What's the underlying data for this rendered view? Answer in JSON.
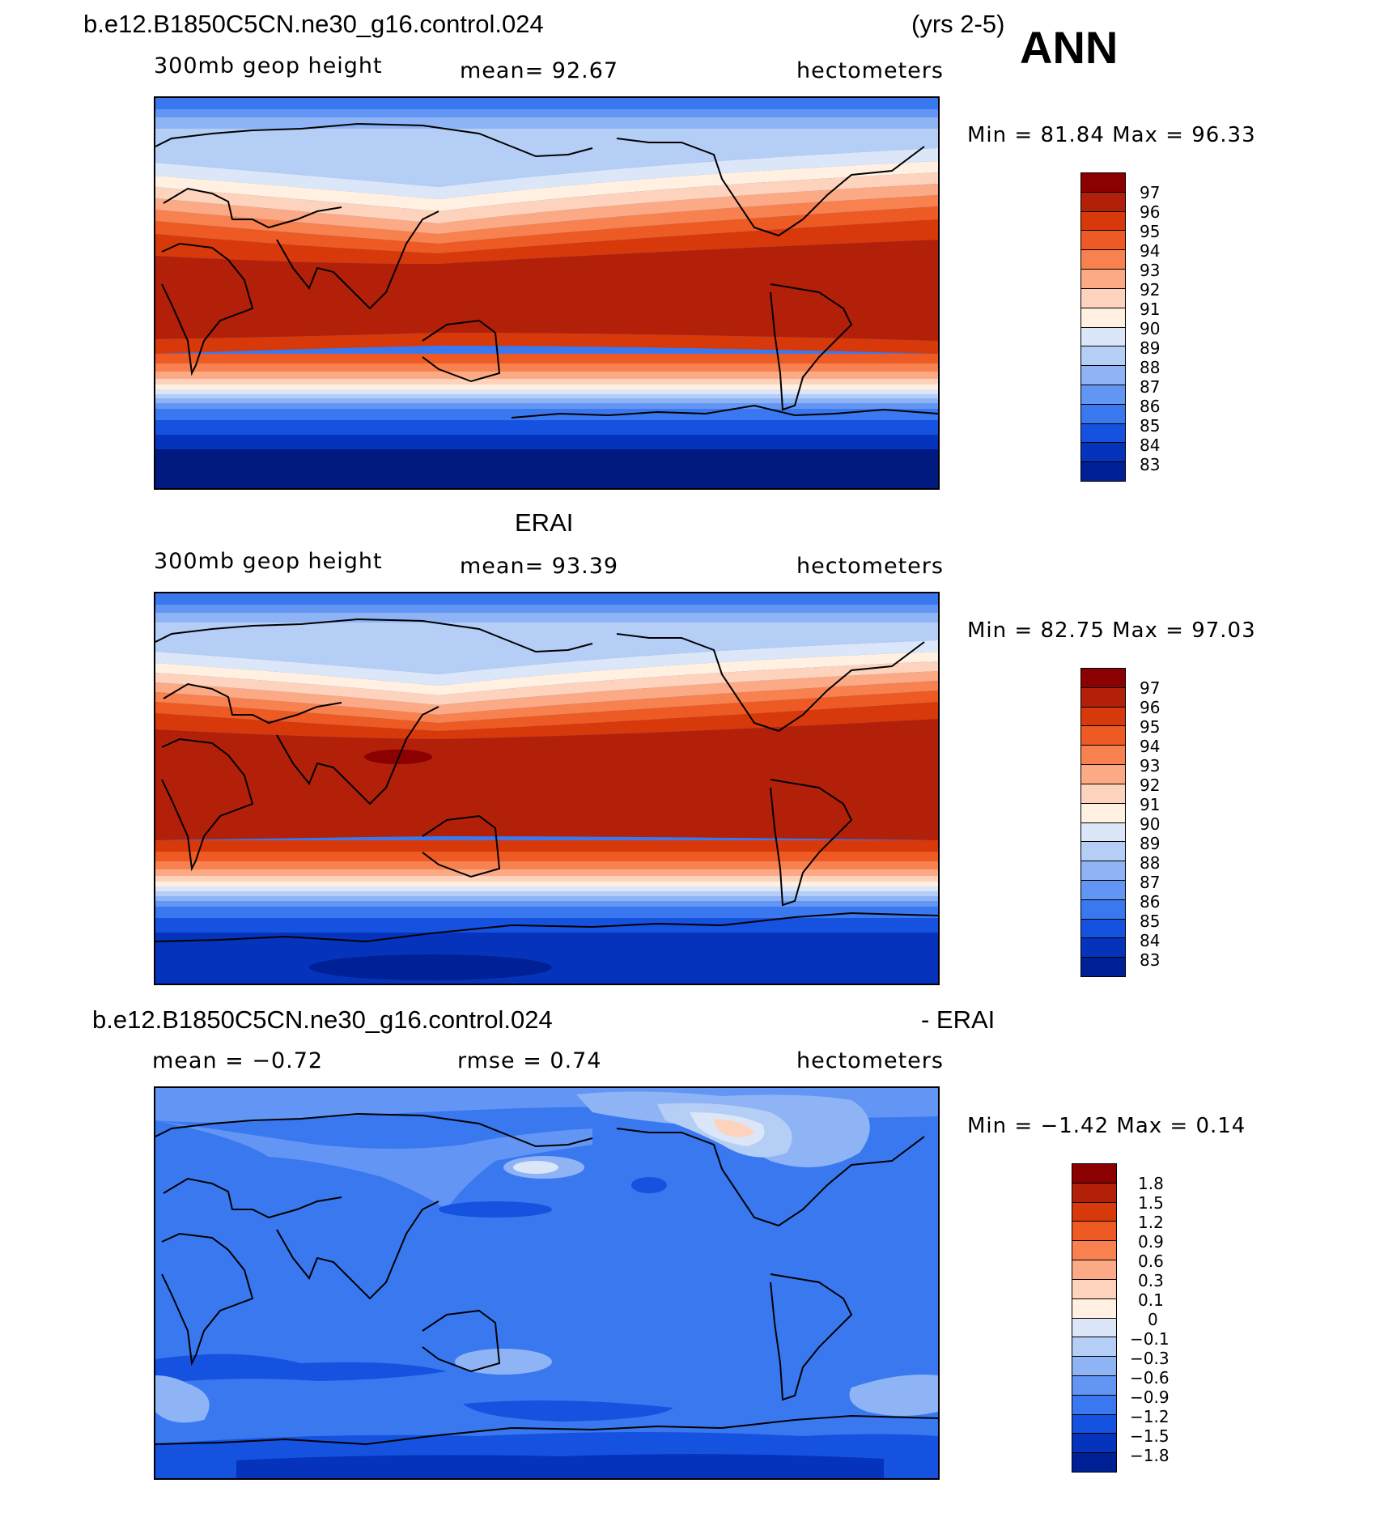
{
  "header": {
    "case_name": "b.e12.B1850C5CN.ne30_g16.control.024",
    "years": "(yrs 2-5)",
    "season": "ANN"
  },
  "panels": [
    {
      "title": "",
      "left_label": "300mb  geop  height",
      "center_label": "mean=   92.67",
      "units": "hectometers",
      "minmax": "Min  =   81.84  Max  =   96.33",
      "colorbar_levels": [
        "97",
        "96",
        "95",
        "94",
        "93",
        "92",
        "91",
        "90",
        "89",
        "88",
        "87",
        "86",
        "85",
        "84",
        "83"
      ],
      "colorbar_colors": [
        "#8b0000",
        "#b22009",
        "#d7390b",
        "#ee5a23",
        "#f88150",
        "#fbaa85",
        "#fdd3bd",
        "#fff0e2",
        "#dbe7f8",
        "#b5cef6",
        "#8fb4f5",
        "#6396f4",
        "#3a78ef",
        "#1552e0",
        "#0633bb",
        "#002196",
        "#001175"
      ]
    },
    {
      "title": "ERAI",
      "left_label": "300mb  geop  height",
      "center_label": "mean=   93.39",
      "units": "hectometers",
      "minmax": "Min  =   82.75  Max  =   97.03",
      "colorbar_levels": [
        "97",
        "96",
        "95",
        "94",
        "93",
        "92",
        "91",
        "90",
        "89",
        "88",
        "87",
        "86",
        "85",
        "84",
        "83"
      ],
      "colorbar_colors": [
        "#8b0000",
        "#b22009",
        "#d7390b",
        "#ee5a23",
        "#f88150",
        "#fbaa85",
        "#fdd3bd",
        "#fff0e2",
        "#dbe7f8",
        "#b5cef6",
        "#8fb4f5",
        "#6396f4",
        "#3a78ef",
        "#1552e0",
        "#0633bb",
        "#002196",
        "#001175"
      ]
    },
    {
      "title_left": "b.e12.B1850C5CN.ne30_g16.control.024",
      "title_right": "- ERAI",
      "left_label": "mean  =   −0.72",
      "center_label": "rmse  =    0.74",
      "units": "hectometers",
      "minmax": "Min  =   −1.42  Max  =    0.14",
      "colorbar_levels": [
        "1.8",
        "1.5",
        "1.2",
        "0.9",
        "0.6",
        "0.3",
        "0.1",
        "0",
        "−0.1",
        "−0.3",
        "−0.6",
        "−0.9",
        "−1.2",
        "−1.5",
        "−1.8"
      ],
      "colorbar_colors": [
        "#8b0000",
        "#b22009",
        "#d7390b",
        "#ee5a23",
        "#f88150",
        "#fbaa85",
        "#fdd3bd",
        "#fff0e2",
        "#dbe7f8",
        "#b5cef6",
        "#8fb4f5",
        "#6396f4",
        "#3a78ef",
        "#1552e0",
        "#0633bb",
        "#002196",
        "#001175"
      ]
    }
  ]
}
